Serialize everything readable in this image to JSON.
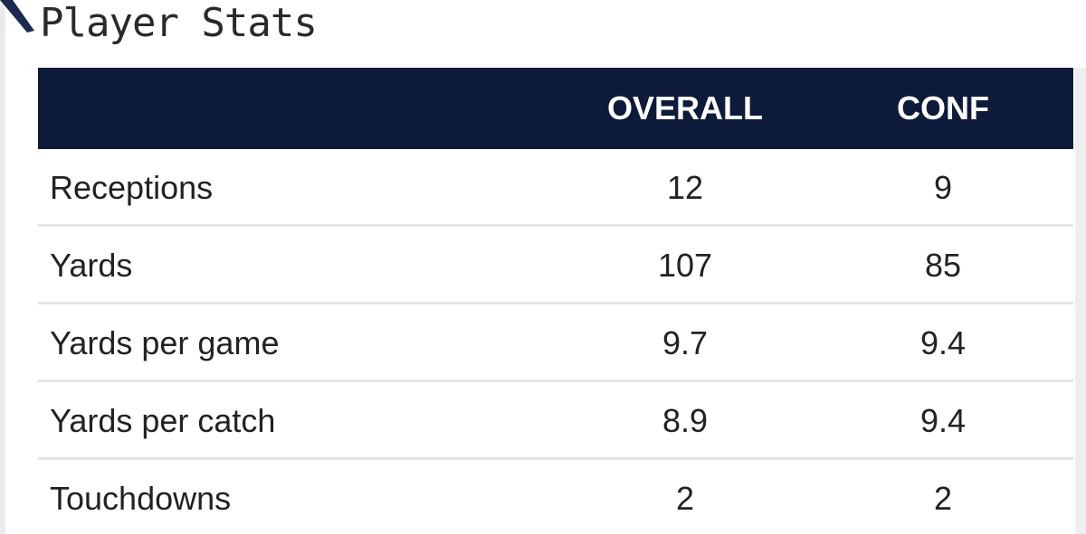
{
  "title": "Player Stats",
  "table": {
    "headers": {
      "label": "",
      "overall": "OVERALL",
      "conf": "CONF"
    },
    "rows": [
      {
        "label": "Receptions",
        "overall": "12",
        "conf": "9"
      },
      {
        "label": "Yards",
        "overall": "107",
        "conf": "85"
      },
      {
        "label": "Yards per game",
        "overall": "9.7",
        "conf": "9.4"
      },
      {
        "label": "Yards per catch",
        "overall": "8.9",
        "conf": "9.4"
      },
      {
        "label": "Touchdowns",
        "overall": "2",
        "conf": "2"
      }
    ]
  },
  "colors": {
    "header_bg": "#0d1a3a",
    "header_text": "#ffffff",
    "row_divider": "#e3e5e9",
    "text": "#222222"
  }
}
